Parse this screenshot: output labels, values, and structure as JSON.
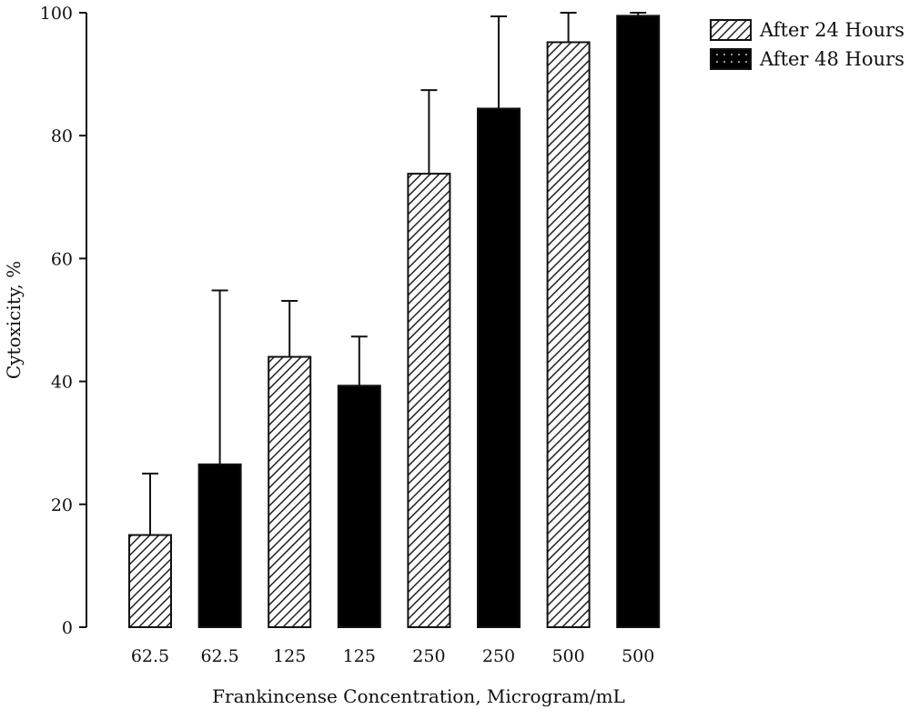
{
  "chart_data": {
    "type": "bar",
    "title": "",
    "xlabel": "Frankincense Concentration, Microgram/mL",
    "ylabel": "Cytoxicity, %",
    "ylim": [
      0,
      100
    ],
    "yticks": [
      0,
      20,
      40,
      60,
      80,
      100
    ],
    "categories": [
      "62.5",
      "62.5",
      "125",
      "125",
      "250",
      "250",
      "500",
      "500"
    ],
    "values": [
      15,
      26.5,
      44,
      39.3,
      73.8,
      84.4,
      95.2,
      99.5
    ],
    "error_upper": [
      25,
      54.8,
      53.1,
      47.3,
      87.4,
      99.4,
      100,
      100
    ],
    "bar_series": [
      "After 24 Hours",
      "After 48 Hours",
      "After 24 Hours",
      "After 48 Hours",
      "After 24 Hours",
      "After 48 Hours",
      "After 24 Hours",
      "After 48 Hours"
    ],
    "legend": {
      "placement": "top-right",
      "entries": [
        {
          "name": "After 24 Hours",
          "pattern": "diagonal-hatch"
        },
        {
          "name": "After 48 Hours",
          "pattern": "black-dotted"
        }
      ]
    },
    "colors": {
      "hatch": "#222222",
      "fill_48h": "#000000",
      "background": "#ffffff"
    }
  }
}
